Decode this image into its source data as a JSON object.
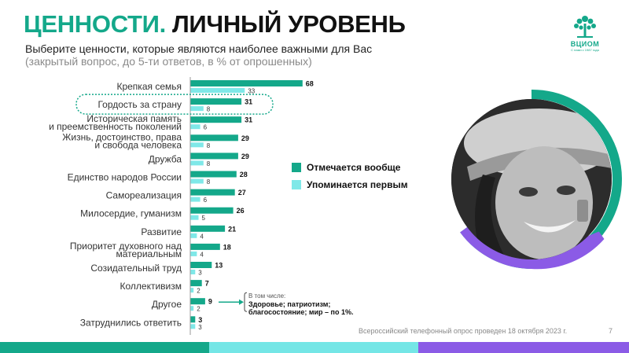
{
  "header": {
    "title_accent": "ЦЕННОСТИ.",
    "title_rest": "ЛИЧНЫЙ УРОВЕНЬ",
    "subtitle_line1": "Выберите ценности, которые являются наиболее важными для Вас",
    "subtitle_line2": "(закрытый вопрос, до 5-ти ответов, в % от опрошенных)"
  },
  "logo": {
    "brand": "ВЦИОМ",
    "since": "С нами с 1987 года",
    "icon": "tree-icon"
  },
  "colors": {
    "accent": "#14a88a",
    "series_total": "#14a88a",
    "series_first": "#7fe8e8",
    "stripe_teal": "#14a88a",
    "stripe_cyan": "#74e6e6",
    "stripe_purple": "#8b5be6"
  },
  "chart_data": {
    "type": "bar",
    "orientation": "horizontal",
    "categories": [
      [
        "Крепкая семья"
      ],
      [
        "Гордость за страну"
      ],
      [
        "Историческая память",
        "и преемственность поколений"
      ],
      [
        "Жизнь, достоинство, права",
        "и свобода человека"
      ],
      [
        "Дружба"
      ],
      [
        "Единство народов России"
      ],
      [
        "Самореализация"
      ],
      [
        "Милосердие, гуманизм"
      ],
      [
        "Развитие"
      ],
      [
        "Приоритет духовного над",
        "материальным"
      ],
      [
        "Созидательный труд"
      ],
      [
        "Коллективизм"
      ],
      [
        "Другое"
      ],
      [
        "Затруднились ответить"
      ]
    ],
    "series": [
      {
        "name": "Отмечается вообще",
        "values": [
          68,
          31,
          31,
          29,
          29,
          28,
          27,
          26,
          21,
          18,
          13,
          7,
          9,
          3
        ]
      },
      {
        "name": "Упоминается первым",
        "values": [
          33,
          8,
          6,
          8,
          8,
          8,
          6,
          5,
          4,
          4,
          3,
          2,
          2,
          3
        ]
      }
    ],
    "highlighted_category_index": 1,
    "legend_position": "right",
    "grid": false
  },
  "note": {
    "heading": "В том числе:",
    "body": "Здоровье; патриотизм; благосостояние; мир – по 1%."
  },
  "footer": {
    "source": "Всероссийский телефонный опрос проведен 18 октября 2023 г.",
    "page_number": "7"
  }
}
